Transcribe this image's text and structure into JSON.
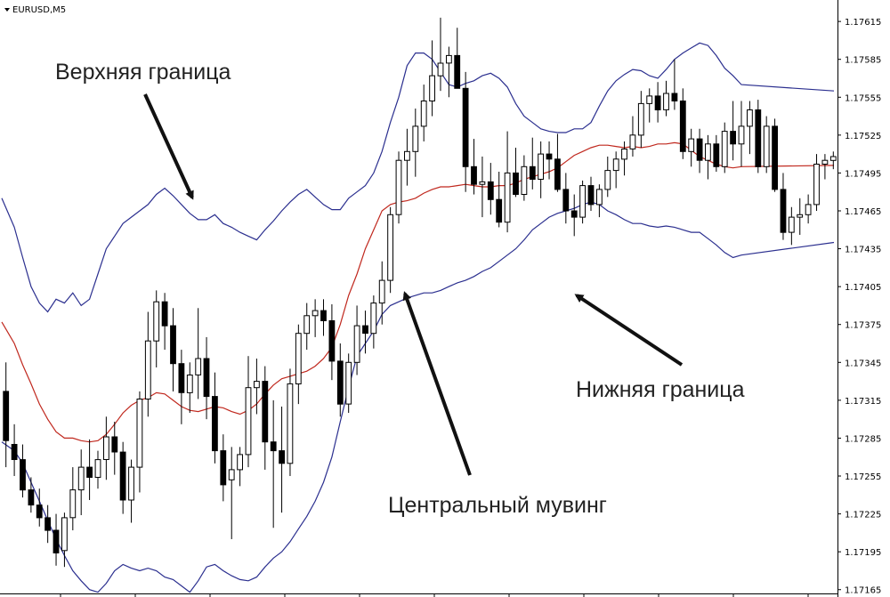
{
  "chart_data": {
    "type": "candlestick",
    "symbol_label": "EURUSD,M5",
    "y_ticks": [
      "1.17615",
      "1.17585",
      "1.17555",
      "1.17525",
      "1.17495",
      "1.17465",
      "1.17435",
      "1.17405",
      "1.17375",
      "1.17345",
      "1.17315",
      "1.17285",
      "1.17255",
      "1.17225",
      "1.17195",
      "1.17165"
    ],
    "ylim": [
      1.17162,
      1.17632
    ],
    "annotations": {
      "upper": "Верхняя граница",
      "lower": "Нижняя граница",
      "middle": "Центральный мувинг"
    },
    "colors": {
      "upper_band": "#2b2f8f",
      "lower_band": "#2b2f8f",
      "middle_band": "#c0281e",
      "candle": "#000000"
    },
    "upper_band": [
      1.17475,
      1.17452,
      1.17428,
      1.17405,
      1.17392,
      1.17385,
      1.17395,
      1.17392,
      1.174,
      1.1739,
      1.17395,
      1.17415,
      1.17435,
      1.17445,
      1.17455,
      1.1746,
      1.17465,
      1.1747,
      1.17478,
      1.17483,
      1.17477,
      1.1747,
      1.17463,
      1.17458,
      1.17458,
      1.17462,
      1.17455,
      1.17452,
      1.17448,
      1.17445,
      1.17442,
      1.1745,
      1.17457,
      1.17465,
      1.17472,
      1.17478,
      1.17482,
      1.17476,
      1.1747,
      1.17466,
      1.17466,
      1.17475,
      1.1748,
      1.17485,
      1.17495,
      1.17512,
      1.17535,
      1.17555,
      1.1758,
      1.1759,
      1.1759,
      1.17585,
      1.17575,
      1.17565,
      1.17563,
      1.17566,
      1.17568,
      1.17572,
      1.17574,
      1.1757,
      1.17563,
      1.1755,
      1.1754,
      1.17535,
      1.1753,
      1.17528,
      1.17527,
      1.17527,
      1.1753,
      1.1753,
      1.17535,
      1.17548,
      1.1756,
      1.17568,
      1.17573,
      1.17577,
      1.17576,
      1.17572,
      1.1757,
      1.17577,
      1.17585,
      1.1759,
      1.17594,
      1.17598,
      1.17596,
      1.17588,
      1.17578,
      1.17572,
      1.17565,
      1.1756
    ],
    "lower_band": [
      1.17282,
      1.17275,
      1.17265,
      1.1725,
      1.17235,
      1.1722,
      1.17205,
      1.17192,
      1.1718,
      1.17172,
      1.17165,
      1.17163,
      1.1717,
      1.1718,
      1.17185,
      1.17182,
      1.1718,
      1.17182,
      1.1718,
      1.17175,
      1.17173,
      1.17168,
      1.17163,
      1.17172,
      1.17183,
      1.17185,
      1.1718,
      1.17176,
      1.17173,
      1.17172,
      1.17175,
      1.17183,
      1.1719,
      1.17195,
      1.17203,
      1.17213,
      1.17223,
      1.17235,
      1.1725,
      1.1727,
      1.17298,
      1.17325,
      1.1735,
      1.1736,
      1.1737,
      1.17383,
      1.1739,
      1.17393,
      1.17396,
      1.17398,
      1.174,
      1.174,
      1.17402,
      1.17405,
      1.17408,
      1.1741,
      1.17413,
      1.17417,
      1.1742,
      1.17425,
      1.1743,
      1.17435,
      1.17442,
      1.1745,
      1.17455,
      1.1746,
      1.17463,
      1.17465,
      1.17467,
      1.1747,
      1.17472,
      1.1747,
      1.17465,
      1.17462,
      1.17458,
      1.17455,
      1.17455,
      1.17453,
      1.17452,
      1.17453,
      1.17452,
      1.1745,
      1.17448,
      1.17448,
      1.17443,
      1.17438,
      1.17432,
      1.17428,
      1.1743,
      1.1744
    ],
    "middle_band": [
      1.17377,
      1.1736,
      1.17343,
      1.17328,
      1.17312,
      1.173,
      1.1729,
      1.17285,
      1.17285,
      1.17283,
      1.17282,
      1.17283,
      1.17288,
      1.17296,
      1.17305,
      1.17311,
      1.17315,
      1.17317,
      1.17321,
      1.1732,
      1.17315,
      1.1731,
      1.17307,
      1.17306,
      1.17308,
      1.1731,
      1.17309,
      1.17306,
      1.17304,
      1.17307,
      1.17312,
      1.1732,
      1.17327,
      1.17332,
      1.17334,
      1.17336,
      1.17338,
      1.17342,
      1.17348,
      1.17357,
      1.17375,
      1.17398,
      1.17415,
      1.17435,
      1.1745,
      1.17465,
      1.1747,
      1.17472,
      1.17473,
      1.17475,
      1.17479,
      1.17482,
      1.17484,
      1.17484,
      1.17485,
      1.17486,
      1.17485,
      1.17484,
      1.17484,
      1.17485,
      1.17485,
      1.17487,
      1.1749,
      1.17492,
      1.17494,
      1.17496,
      1.17499,
      1.17504,
      1.17509,
      1.17512,
      1.17515,
      1.17517,
      1.17517,
      1.17516,
      1.17515,
      1.17516,
      1.17515,
      1.17516,
      1.17518,
      1.17518,
      1.17519,
      1.17518,
      1.17513,
      1.17508,
      1.17505,
      1.17502,
      1.175,
      1.17499,
      1.175,
      1.17501
    ],
    "candles": [
      [
        1.17322,
        1.17345,
        1.17262,
        1.17283
      ],
      [
        1.1728,
        1.17296,
        1.17255,
        1.17268
      ],
      [
        1.17268,
        1.1728,
        1.17238,
        1.17244
      ],
      [
        1.17244,
        1.17254,
        1.17226,
        1.17232
      ],
      [
        1.17232,
        1.17245,
        1.17215,
        1.17222
      ],
      [
        1.17222,
        1.17232,
        1.17202,
        1.17212
      ],
      [
        1.17212,
        1.17225,
        1.17184,
        1.17194
      ],
      [
        1.17196,
        1.17226,
        1.17183,
        1.17222
      ],
      [
        1.17222,
        1.17262,
        1.17212,
        1.17244
      ],
      [
        1.17244,
        1.17276,
        1.17224,
        1.17262
      ],
      [
        1.17262,
        1.17284,
        1.17236,
        1.17254
      ],
      [
        1.17254,
        1.17275,
        1.17245,
        1.17268
      ],
      [
        1.17268,
        1.17302,
        1.17252,
        1.17286
      ],
      [
        1.17286,
        1.17298,
        1.17256,
        1.17274
      ],
      [
        1.17274,
        1.17282,
        1.17225,
        1.17236
      ],
      [
        1.17236,
        1.17268,
        1.17218,
        1.17262
      ],
      [
        1.17262,
        1.17322,
        1.17242,
        1.17316
      ],
      [
        1.17316,
        1.17385,
        1.17302,
        1.17362
      ],
      [
        1.17362,
        1.17402,
        1.17341,
        1.17393
      ],
      [
        1.17393,
        1.174,
        1.17355,
        1.17374
      ],
      [
        1.17374,
        1.17388,
        1.17322,
        1.17344
      ],
      [
        1.17344,
        1.17355,
        1.17296,
        1.17321
      ],
      [
        1.17321,
        1.17345,
        1.17305,
        1.17335
      ],
      [
        1.17335,
        1.17388,
        1.17316,
        1.17348
      ],
      [
        1.17348,
        1.17365,
        1.173,
        1.17318
      ],
      [
        1.17318,
        1.17337,
        1.17265,
        1.17275
      ],
      [
        1.17275,
        1.17288,
        1.17235,
        1.17248
      ],
      [
        1.17252,
        1.17278,
        1.17205,
        1.1726
      ],
      [
        1.1726,
        1.17278,
        1.17247,
        1.17272
      ],
      [
        1.17272,
        1.1735,
        1.17262,
        1.17325
      ],
      [
        1.17325,
        1.17348,
        1.17304,
        1.1733
      ],
      [
        1.1733,
        1.17342,
        1.1726,
        1.17282
      ],
      [
        1.17282,
        1.17315,
        1.17214,
        1.17275
      ],
      [
        1.17275,
        1.1731,
        1.17226,
        1.17265
      ],
      [
        1.17265,
        1.1734,
        1.17255,
        1.17328
      ],
      [
        1.17328,
        1.17375,
        1.17312,
        1.17368
      ],
      [
        1.17368,
        1.17392,
        1.17355,
        1.17382
      ],
      [
        1.17382,
        1.17395,
        1.17365,
        1.17386
      ],
      [
        1.17386,
        1.17395,
        1.17366,
        1.17378
      ],
      [
        1.17378,
        1.17391,
        1.17331,
        1.17346
      ],
      [
        1.17346,
        1.1736,
        1.17302,
        1.17312
      ],
      [
        1.17312,
        1.17352,
        1.17305,
        1.17345
      ],
      [
        1.17345,
        1.1739,
        1.17335,
        1.17374
      ],
      [
        1.17374,
        1.17386,
        1.17352,
        1.17368
      ],
      [
        1.17368,
        1.17398,
        1.17356,
        1.17392
      ],
      [
        1.17392,
        1.17425,
        1.17375,
        1.1741
      ],
      [
        1.1741,
        1.17468,
        1.174,
        1.17462
      ],
      [
        1.17462,
        1.17512,
        1.17455,
        1.17505
      ],
      [
        1.17505,
        1.1753,
        1.17485,
        1.17512
      ],
      [
        1.17512,
        1.17546,
        1.17492,
        1.17532
      ],
      [
        1.17532,
        1.17565,
        1.1752,
        1.17552
      ],
      [
        1.17552,
        1.176,
        1.1754,
        1.17572
      ],
      [
        1.17572,
        1.17618,
        1.1756,
        1.17582
      ],
      [
        1.17582,
        1.17595,
        1.17555,
        1.17588
      ],
      [
        1.17588,
        1.1761,
        1.17562,
        1.17562
      ],
      [
        1.17562,
        1.17575,
        1.1748,
        1.175
      ],
      [
        1.175,
        1.17522,
        1.17478,
        1.17486
      ],
      [
        1.17486,
        1.17508,
        1.1746,
        1.17488
      ],
      [
        1.17488,
        1.17503,
        1.17462,
        1.17474
      ],
      [
        1.17474,
        1.17496,
        1.17452,
        1.17456
      ],
      [
        1.17456,
        1.17528,
        1.17448,
        1.17495
      ],
      [
        1.17495,
        1.17515,
        1.17476,
        1.17478
      ],
      [
        1.17478,
        1.17509,
        1.17473,
        1.175
      ],
      [
        1.175,
        1.17523,
        1.17482,
        1.1749
      ],
      [
        1.1749,
        1.1752,
        1.17475,
        1.1751
      ],
      [
        1.1751,
        1.1752,
        1.1749,
        1.17506
      ],
      [
        1.17506,
        1.17526,
        1.1748,
        1.17482
      ],
      [
        1.17482,
        1.17495,
        1.17455,
        1.17465
      ],
      [
        1.17465,
        1.17478,
        1.17445,
        1.1746
      ],
      [
        1.1746,
        1.17489,
        1.17455,
        1.17485
      ],
      [
        1.17485,
        1.17492,
        1.17465,
        1.1747
      ],
      [
        1.1747,
        1.17486,
        1.1746,
        1.17482
      ],
      [
        1.17482,
        1.17508,
        1.17476,
        1.17497
      ],
      [
        1.17497,
        1.17512,
        1.17483,
        1.17506
      ],
      [
        1.17506,
        1.1752,
        1.17493,
        1.17514
      ],
      [
        1.17514,
        1.1754,
        1.17508,
        1.17525
      ],
      [
        1.17525,
        1.1756,
        1.17515,
        1.1755
      ],
      [
        1.1755,
        1.17562,
        1.17535,
        1.17556
      ],
      [
        1.17556,
        1.17567,
        1.17535,
        1.17545
      ],
      [
        1.17545,
        1.17568,
        1.1754,
        1.17558
      ],
      [
        1.17558,
        1.17585,
        1.17545,
        1.17552
      ],
      [
        1.17552,
        1.17562,
        1.17506,
        1.17512
      ],
      [
        1.17512,
        1.1753,
        1.175,
        1.17522
      ],
      [
        1.17522,
        1.1753,
        1.17495,
        1.17505
      ],
      [
        1.17505,
        1.17525,
        1.1749,
        1.17518
      ],
      [
        1.17518,
        1.17525,
        1.17496,
        1.175
      ],
      [
        1.175,
        1.17535,
        1.17495,
        1.17528
      ],
      [
        1.17528,
        1.17552,
        1.17505,
        1.17518
      ],
      [
        1.17518,
        1.17552,
        1.175,
        1.17532
      ],
      [
        1.17532,
        1.17552,
        1.1751,
        1.17545
      ],
      [
        1.17545,
        1.17553,
        1.17495,
        1.175
      ],
      [
        1.175,
        1.1754,
        1.17495,
        1.17532
      ],
      [
        1.17532,
        1.17538,
        1.1748,
        1.17482
      ],
      [
        1.17482,
        1.17495,
        1.17442,
        1.17448
      ],
      [
        1.17448,
        1.17468,
        1.17438,
        1.1746
      ],
      [
        1.1746,
        1.17475,
        1.17446,
        1.17462
      ],
      [
        1.17462,
        1.17478,
        1.17455,
        1.1747
      ],
      [
        1.1747,
        1.1751,
        1.17465,
        1.17502
      ],
      [
        1.17502,
        1.1751,
        1.1749,
        1.17505
      ],
      [
        1.17505,
        1.17512,
        1.17498,
        1.17508
      ]
    ]
  }
}
